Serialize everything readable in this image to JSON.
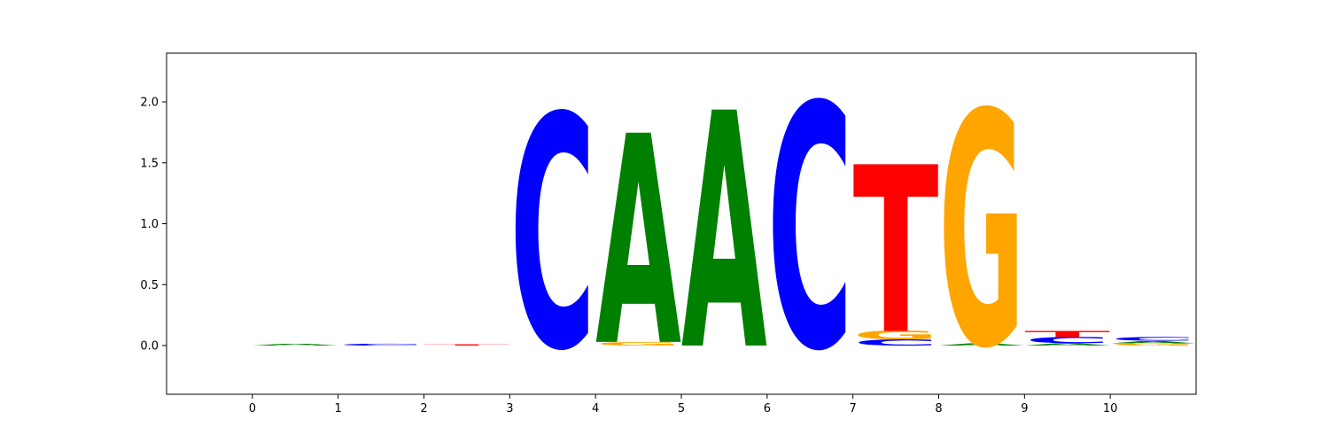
{
  "chart_data": {
    "type": "sequence-logo",
    "title": "",
    "xlabel": "",
    "ylabel": "",
    "xlim": [
      -1,
      11
    ],
    "ylim": [
      -0.4,
      2.4
    ],
    "x_ticks": [
      "0",
      "1",
      "2",
      "3",
      "4",
      "5",
      "6",
      "7",
      "8",
      "9",
      "10"
    ],
    "y_ticks": [
      "0.0",
      "0.5",
      "1.0",
      "1.5",
      "2.0"
    ],
    "y_tick_values": [
      0.0,
      0.5,
      1.0,
      1.5,
      2.0
    ],
    "colors": {
      "A": "#008000",
      "C": "#0000ff",
      "G": "#ffa500",
      "T": "#ff0000"
    },
    "positions": [
      {
        "x": 0,
        "letters": [
          {
            "base": "A",
            "height": 0.015
          }
        ]
      },
      {
        "x": 1,
        "letters": [
          {
            "base": "C",
            "height": 0.015
          }
        ]
      },
      {
        "x": 2,
        "letters": [
          {
            "base": "T",
            "height": 0.01
          }
        ]
      },
      {
        "x": 3,
        "letters": [
          {
            "base": "C",
            "height": 1.91
          }
        ]
      },
      {
        "x": 4,
        "letters": [
          {
            "base": "G",
            "height": 0.03
          },
          {
            "base": "A",
            "height": 1.72
          }
        ]
      },
      {
        "x": 5,
        "letters": [
          {
            "base": "A",
            "height": 1.94
          }
        ]
      },
      {
        "x": 6,
        "letters": [
          {
            "base": "C",
            "height": 2.0
          }
        ]
      },
      {
        "x": 7,
        "letters": [
          {
            "base": "C",
            "height": 0.05
          },
          {
            "base": "G",
            "height": 0.07
          },
          {
            "base": "T",
            "height": 1.37
          }
        ]
      },
      {
        "x": 8,
        "letters": [
          {
            "base": "A",
            "height": 0.02
          },
          {
            "base": "G",
            "height": 1.92
          }
        ]
      },
      {
        "x": 9,
        "letters": [
          {
            "base": "A",
            "height": 0.02
          },
          {
            "base": "C",
            "height": 0.05
          },
          {
            "base": "T",
            "height": 0.05
          }
        ]
      },
      {
        "x": 10,
        "letters": [
          {
            "base": "G",
            "height": 0.02
          },
          {
            "base": "A",
            "height": 0.02
          },
          {
            "base": "C",
            "height": 0.03
          }
        ]
      }
    ]
  }
}
